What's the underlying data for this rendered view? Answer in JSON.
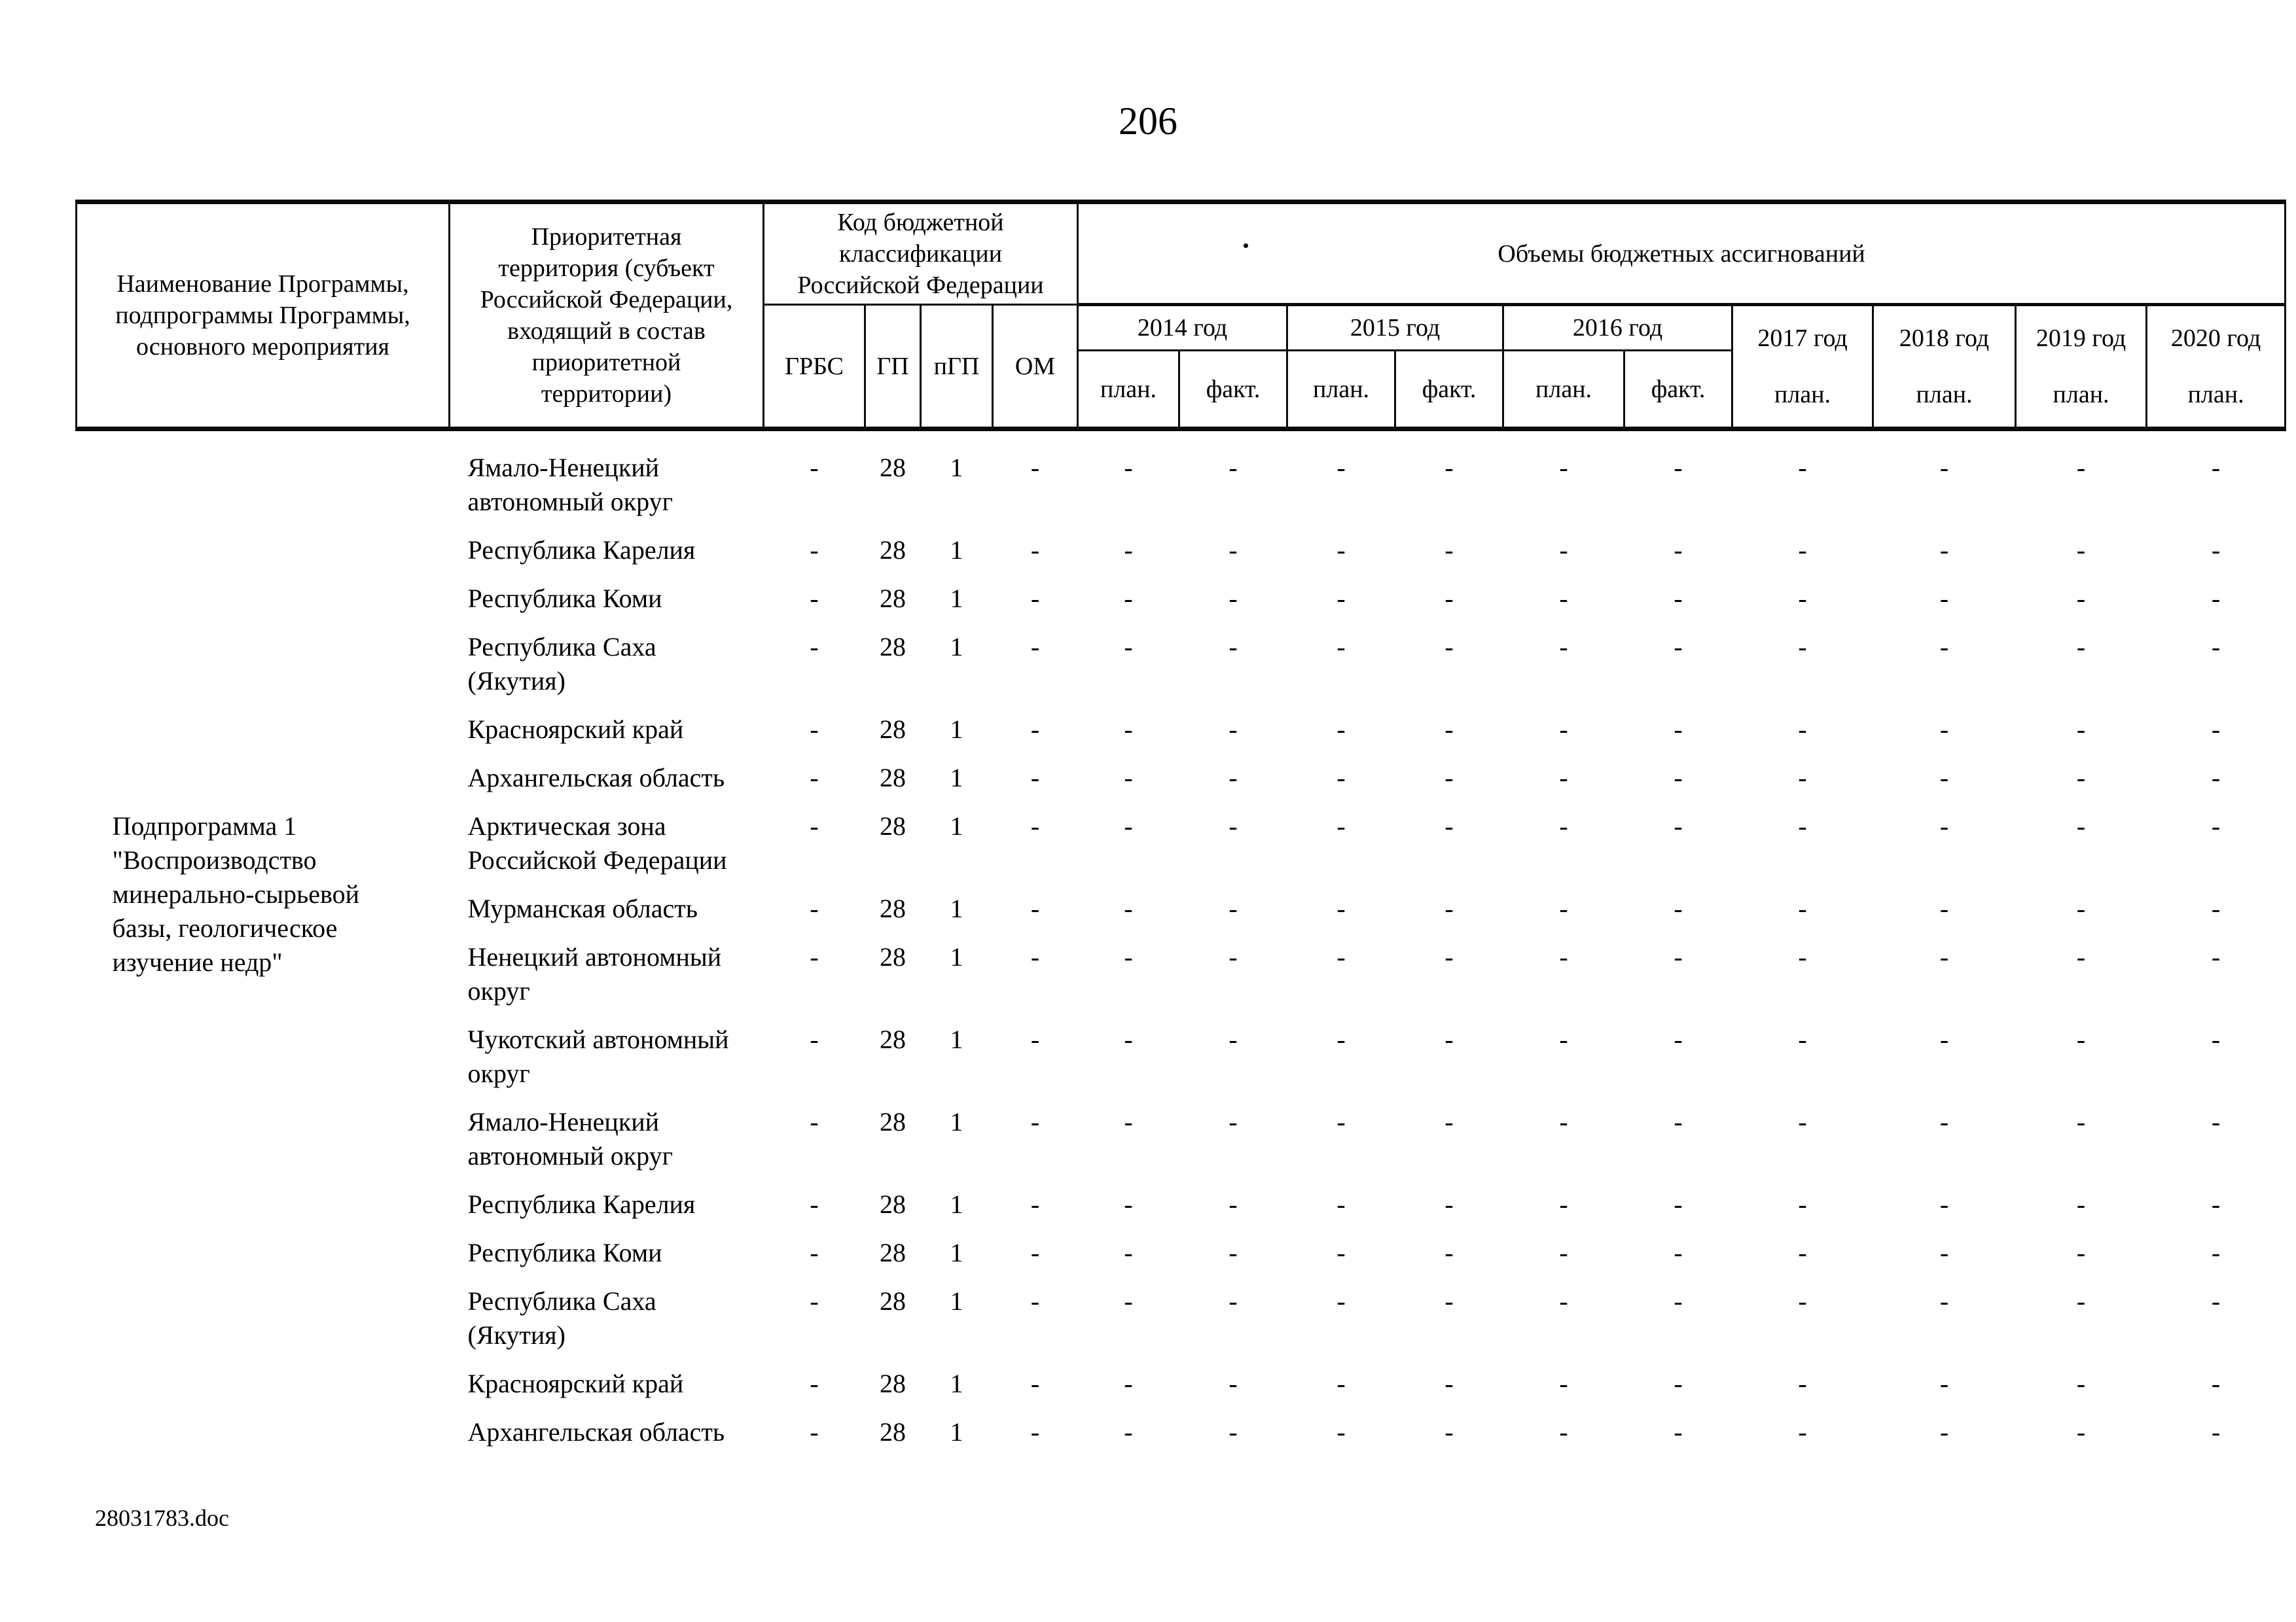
{
  "page": {
    "number": "206",
    "footer_filename": "28031783.doc"
  },
  "table": {
    "header": {
      "col_name": "Наименование Программы,\nподпрограммы Программы,\nосновного мероприятия",
      "col_territory": "Приоритетная\nтерритория (субъект\nРоссийской Федерации,\nвходящий в состав\nприоритетной\nтерритории)",
      "col_budget_code": "Код бюджетной\nклассификации\nРоссийской Федерации",
      "col_volumes": "Объемы бюджетных ассигнований",
      "code_subcols": [
        "ГРБС",
        "ГП",
        "пГП",
        "ОМ"
      ],
      "year_groups": [
        {
          "label": "2014 год",
          "sub": [
            "план.",
            "факт."
          ]
        },
        {
          "label": "2015 год",
          "sub": [
            "план.",
            "факт."
          ]
        },
        {
          "label": "2016 год",
          "sub": [
            "план.",
            "факт."
          ]
        }
      ],
      "plan_years": [
        "2017 год\nплан.",
        "2018 год\nплан.",
        "2019 год\nплан.",
        "2020 год\nплан."
      ]
    },
    "program_label": "Подпрограмма 1\n\"Воспроизводство\nминерально-сырьевой\nбазы, геологическое\nизучение недр\"",
    "rows": [
      {
        "territory": "Ямало-Ненецкий\nавтономный округ",
        "grbs": "-",
        "gp": "28",
        "pgp": "1",
        "om": "-",
        "values": [
          "-",
          "-",
          "-",
          "-",
          "-",
          "-",
          "-",
          "-",
          "-",
          "-"
        ]
      },
      {
        "territory": "Республика Карелия",
        "grbs": "-",
        "gp": "28",
        "pgp": "1",
        "om": "-",
        "values": [
          "-",
          "-",
          "-",
          "-",
          "-",
          "-",
          "-",
          "-",
          "-",
          "-"
        ]
      },
      {
        "territory": "Республика Коми",
        "grbs": "-",
        "gp": "28",
        "pgp": "1",
        "om": "-",
        "values": [
          "-",
          "-",
          "-",
          "-",
          "-",
          "-",
          "-",
          "-",
          "-",
          "-"
        ]
      },
      {
        "territory": "Республика Саха\n(Якутия)",
        "grbs": "-",
        "gp": "28",
        "pgp": "1",
        "om": "-",
        "values": [
          "-",
          "-",
          "-",
          "-",
          "-",
          "-",
          "-",
          "-",
          "-",
          "-"
        ]
      },
      {
        "territory": "Красноярский край",
        "grbs": "-",
        "gp": "28",
        "pgp": "1",
        "om": "-",
        "values": [
          "-",
          "-",
          "-",
          "-",
          "-",
          "-",
          "-",
          "-",
          "-",
          "-"
        ]
      },
      {
        "territory": "Архангельская область",
        "grbs": "-",
        "gp": "28",
        "pgp": "1",
        "om": "-",
        "values": [
          "-",
          "-",
          "-",
          "-",
          "-",
          "-",
          "-",
          "-",
          "-",
          "-"
        ]
      },
      {
        "territory": "Арктическая зона\nРоссийской Федерации",
        "grbs": "-",
        "gp": "28",
        "pgp": "1",
        "om": "-",
        "values": [
          "-",
          "-",
          "-",
          "-",
          "-",
          "-",
          "-",
          "-",
          "-",
          "-"
        ]
      },
      {
        "territory": "Мурманская область",
        "grbs": "-",
        "gp": "28",
        "pgp": "1",
        "om": "-",
        "values": [
          "-",
          "-",
          "-",
          "-",
          "-",
          "-",
          "-",
          "-",
          "-",
          "-"
        ]
      },
      {
        "territory": "Ненецкий автономный\nокруг",
        "grbs": "-",
        "gp": "28",
        "pgp": "1",
        "om": "-",
        "values": [
          "-",
          "-",
          "-",
          "-",
          "-",
          "-",
          "-",
          "-",
          "-",
          "-"
        ]
      },
      {
        "territory": "Чукотский автономный\nокруг",
        "grbs": "-",
        "gp": "28",
        "pgp": "1",
        "om": "-",
        "values": [
          "-",
          "-",
          "-",
          "-",
          "-",
          "-",
          "-",
          "-",
          "-",
          "-"
        ]
      },
      {
        "territory": "Ямало-Ненецкий\nавтономный округ",
        "grbs": "-",
        "gp": "28",
        "pgp": "1",
        "om": "-",
        "values": [
          "-",
          "-",
          "-",
          "-",
          "-",
          "-",
          "-",
          "-",
          "-",
          "-"
        ]
      },
      {
        "territory": "Республика Карелия",
        "grbs": "-",
        "gp": "28",
        "pgp": "1",
        "om": "-",
        "values": [
          "-",
          "-",
          "-",
          "-",
          "-",
          "-",
          "-",
          "-",
          "-",
          "-"
        ]
      },
      {
        "territory": "Республика Коми",
        "grbs": "-",
        "gp": "28",
        "pgp": "1",
        "om": "-",
        "values": [
          "-",
          "-",
          "-",
          "-",
          "-",
          "-",
          "-",
          "-",
          "-",
          "-"
        ]
      },
      {
        "territory": "Республика Саха\n(Якутия)",
        "grbs": "-",
        "gp": "28",
        "pgp": "1",
        "om": "-",
        "values": [
          "-",
          "-",
          "-",
          "-",
          "-",
          "-",
          "-",
          "-",
          "-",
          "-"
        ]
      },
      {
        "territory": "Красноярский край",
        "grbs": "-",
        "gp": "28",
        "pgp": "1",
        "om": "-",
        "values": [
          "-",
          "-",
          "-",
          "-",
          "-",
          "-",
          "-",
          "-",
          "-",
          "-"
        ]
      },
      {
        "territory": "Архангельская область",
        "grbs": "-",
        "gp": "28",
        "pgp": "1",
        "om": "-",
        "values": [
          "-",
          "-",
          "-",
          "-",
          "-",
          "-",
          "-",
          "-",
          "-",
          "-"
        ]
      }
    ]
  }
}
